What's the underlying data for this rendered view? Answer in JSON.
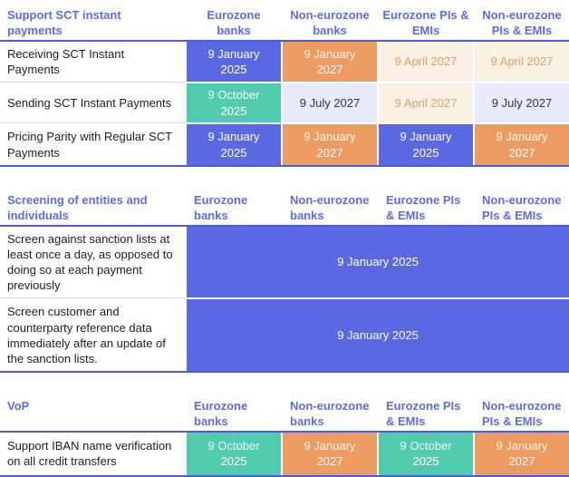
{
  "palette": {
    "header_text_blue": "#5b6cea",
    "cell_blue": "#5a68e2",
    "cell_orange": "#ec9b61",
    "cell_teal": "#50cbae",
    "cell_lavender": "#e7ebfa",
    "cell_cream": "#faf0e3",
    "rule_blue": "#4c5ed6",
    "label_separator_gray": "#d9d9d9",
    "navy_text": "#27375e",
    "orange_text": "#ec9c62"
  },
  "sections": [
    {
      "title": "Support SCT instant payments",
      "header_align": "center",
      "columns": [
        "Eurozone banks",
        "Non-eurozone banks",
        "Eurozone PIs & EMIs",
        "Non-eurozone PIs & EMIs"
      ],
      "rows": [
        {
          "label": "Receiving SCT Instant Payments",
          "cells": [
            {
              "text": "9 January 2025",
              "style": "blue"
            },
            {
              "text": "9 January 2027",
              "style": "orange"
            },
            {
              "text": "9 April 2027",
              "style": "cream"
            },
            {
              "text": "9 April 2027",
              "style": "cream"
            }
          ]
        },
        {
          "label": "Sending SCT Instant Payments",
          "cells": [
            {
              "text": "9 October 2025",
              "style": "teal"
            },
            {
              "text": "9 July 2027",
              "style": "lavender"
            },
            {
              "text": "9 April 2027",
              "style": "cream"
            },
            {
              "text": "9 July 2027",
              "style": "lavender"
            }
          ]
        },
        {
          "label": "Pricing Parity with Regular SCT Payments",
          "cells": [
            {
              "text": "9 January 2025",
              "style": "blue"
            },
            {
              "text": "9 January 2027",
              "style": "orange"
            },
            {
              "text": "9 January 2025",
              "style": "blue"
            },
            {
              "text": "9 January 2027",
              "style": "orange"
            }
          ]
        }
      ]
    },
    {
      "title": "Screening of entities and individuals",
      "header_align": "left",
      "columns": [
        "Eurozone banks",
        "Non-eurozone banks",
        "Eurozone PIs & EMIs",
        "Non-eurozone PIs & EMIs"
      ],
      "rows": [
        {
          "label": "Screen against sanction lists at least once a day, as opposed to doing so at each payment previously",
          "cells": [
            {
              "text": "9 January 2025",
              "style": "blue",
              "span": 4
            }
          ]
        },
        {
          "label": "Screen customer and counterparty reference data immediately after an update of the sanction lists.",
          "cells": [
            {
              "text": "9 January 2025",
              "style": "blue",
              "span": 4
            }
          ]
        }
      ]
    },
    {
      "title": "VoP",
      "header_align": "left",
      "columns": [
        "Eurozone banks",
        "Non-eurozone banks",
        "Eurozone PIs & EMIs",
        "Non-eurozone PIs & EMIs"
      ],
      "rows": [
        {
          "label": "Support IBAN name verification on all credit transfers",
          "cells": [
            {
              "text": "9 October 2025",
              "style": "teal"
            },
            {
              "text": "9 January 2027",
              "style": "orange"
            },
            {
              "text": "9 October 2025",
              "style": "teal"
            },
            {
              "text": "9 January 2027",
              "style": "orange"
            }
          ]
        }
      ]
    }
  ]
}
